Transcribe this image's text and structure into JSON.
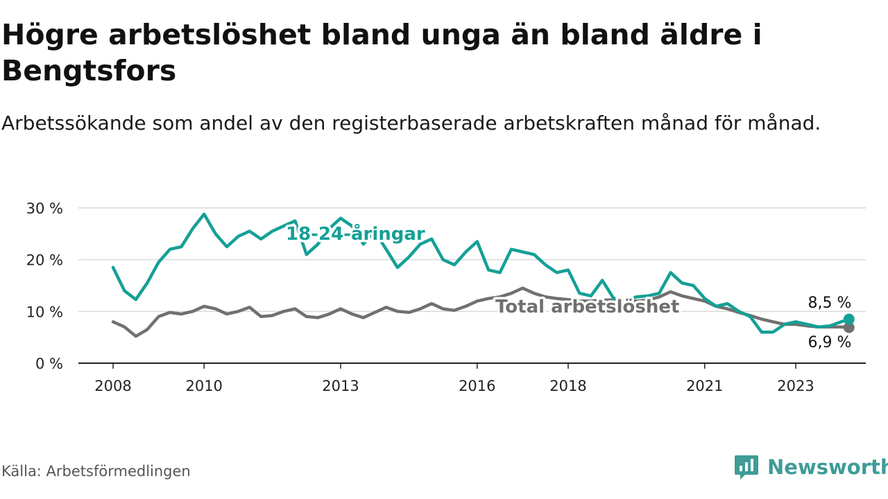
{
  "header": {
    "title": "Högre arbetslöshet bland unga än bland äldre i Bengtsfors",
    "subtitle": "Arbetssökande som andel av den registerbaserade arbetskraften månad för månad."
  },
  "footer": {
    "source": "Källa: Arbetsförmedlingen",
    "brand": "Newsworthy"
  },
  "colors": {
    "youth": "#14a096",
    "total": "#707070",
    "grid": "#d9d9d9",
    "axis": "#222222",
    "brand": "#3f9c98"
  },
  "chart_data": {
    "type": "line",
    "title": "Högre arbetslöshet bland unga än bland äldre i Bengtsfors",
    "xlabel": "",
    "ylabel": "",
    "ylim": [
      0,
      30
    ],
    "xlim": [
      2008.0,
      2025.2
    ],
    "y_ticks": [
      0,
      10,
      20,
      30
    ],
    "y_tick_labels": [
      "0 %",
      "10 %",
      "20 %",
      "30 %"
    ],
    "x_ticks": [
      2008,
      2010,
      2013,
      2016,
      2018,
      2021,
      2023
    ],
    "x_tick_labels": [
      "2008",
      "2010",
      "2013",
      "2016",
      "2018",
      "2021",
      "2023"
    ],
    "grid": true,
    "series": [
      {
        "name": "18-24-åringar",
        "label": "18-24-åringar",
        "end_label": "8,5 %",
        "x": [
          2008.0,
          2008.25,
          2008.5,
          2008.75,
          2009.0,
          2009.25,
          2009.5,
          2009.75,
          2010.0,
          2010.25,
          2010.5,
          2010.75,
          2011.0,
          2011.25,
          2011.5,
          2011.75,
          2012.0,
          2012.25,
          2012.5,
          2012.75,
          2013.0,
          2013.25,
          2013.5,
          2013.75,
          2014.0,
          2014.25,
          2014.5,
          2014.75,
          2015.0,
          2015.25,
          2015.5,
          2015.75,
          2016.0,
          2016.25,
          2016.5,
          2016.75,
          2017.0,
          2017.25,
          2017.5,
          2017.75,
          2018.0,
          2018.25,
          2018.5,
          2018.75,
          2019.0,
          2019.25,
          2019.5,
          2019.75,
          2020.0,
          2020.25,
          2020.5,
          2020.75,
          2021.0,
          2021.25,
          2021.5,
          2021.75,
          2022.0,
          2022.25,
          2022.5,
          2022.75,
          2023.0,
          2023.25,
          2023.5,
          2023.75,
          2024.0,
          2024.17
        ],
        "values": [
          18.5,
          14.0,
          12.3,
          15.5,
          19.5,
          22.0,
          22.5,
          26.0,
          28.8,
          25.0,
          22.5,
          24.5,
          25.5,
          24.0,
          25.5,
          26.5,
          27.5,
          21.0,
          23.0,
          26.0,
          28.0,
          26.5,
          23.0,
          25.5,
          22.0,
          18.5,
          20.5,
          23.0,
          24.0,
          20.0,
          19.0,
          21.5,
          23.5,
          18.0,
          17.5,
          22.0,
          21.5,
          21.0,
          19.0,
          17.5,
          18.0,
          13.5,
          13.0,
          16.0,
          12.5,
          12.0,
          12.8,
          13.0,
          13.5,
          17.5,
          15.5,
          15.0,
          12.5,
          11.0,
          11.5,
          10.0,
          9.0,
          6.0,
          6.0,
          7.5,
          8.0,
          7.5,
          7.0,
          7.2,
          8.0,
          8.5
        ]
      },
      {
        "name": "Total arbetslöshet",
        "label": "Total arbetslöshet",
        "end_label": "6,9 %",
        "x": [
          2008.0,
          2008.25,
          2008.5,
          2008.75,
          2009.0,
          2009.25,
          2009.5,
          2009.75,
          2010.0,
          2010.25,
          2010.5,
          2010.75,
          2011.0,
          2011.25,
          2011.5,
          2011.75,
          2012.0,
          2012.25,
          2012.5,
          2012.75,
          2013.0,
          2013.25,
          2013.5,
          2013.75,
          2014.0,
          2014.25,
          2014.5,
          2014.75,
          2015.0,
          2015.25,
          2015.5,
          2015.75,
          2016.0,
          2016.25,
          2016.5,
          2016.75,
          2017.0,
          2017.25,
          2017.5,
          2017.75,
          2018.0,
          2018.25,
          2018.5,
          2018.75,
          2019.0,
          2019.25,
          2019.5,
          2019.75,
          2020.0,
          2020.25,
          2020.5,
          2020.75,
          2021.0,
          2021.25,
          2021.5,
          2021.75,
          2022.0,
          2022.25,
          2022.5,
          2022.75,
          2023.0,
          2023.25,
          2023.5,
          2023.75,
          2024.0,
          2024.17
        ],
        "values": [
          8.0,
          7.0,
          5.2,
          6.5,
          9.0,
          9.8,
          9.5,
          10.0,
          11.0,
          10.5,
          9.5,
          10.0,
          10.8,
          9.0,
          9.2,
          10.0,
          10.5,
          9.0,
          8.8,
          9.5,
          10.5,
          9.5,
          8.8,
          9.8,
          10.8,
          10.0,
          9.8,
          10.5,
          11.5,
          10.5,
          10.2,
          11.0,
          12.0,
          12.5,
          12.8,
          13.5,
          14.5,
          13.5,
          12.8,
          12.5,
          12.3,
          12.0,
          12.0,
          12.2,
          12.2,
          12.0,
          12.0,
          12.2,
          12.8,
          13.8,
          13.0,
          12.5,
          12.0,
          11.0,
          10.5,
          9.8,
          9.2,
          8.5,
          8.0,
          7.5,
          7.5,
          7.2,
          7.0,
          7.0,
          7.0,
          6.9
        ]
      }
    ]
  }
}
